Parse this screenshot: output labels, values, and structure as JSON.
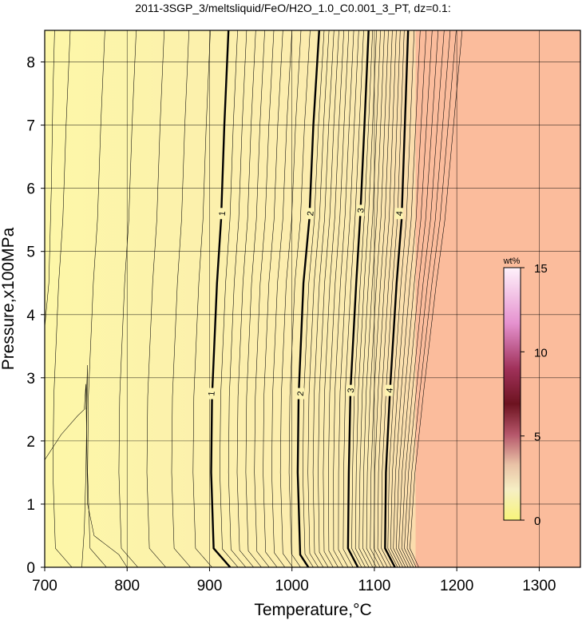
{
  "chart_data": {
    "type": "contour",
    "title": "2011-3SGP_3/meltsliquid/FeO/H2O_1.0_C0.001_3_PT, dz=0.1:",
    "xlabel": "Temperature,°C",
    "ylabel": "Pressure,x100MPa",
    "xlim": [
      700,
      1350
    ],
    "ylim": [
      0,
      8.5
    ],
    "x_ticks": [
      700,
      800,
      900,
      1000,
      1100,
      1200,
      1300
    ],
    "y_ticks": [
      0,
      1,
      2,
      3,
      4,
      5,
      6,
      7,
      8
    ],
    "grid": true,
    "contour_interval": 0.1,
    "labeled_contours": [
      {
        "level": 1,
        "points": [
          [
            925,
            0
          ],
          [
            905,
            0.3
          ],
          [
            902,
            1.5
          ],
          [
            903,
            2.7
          ],
          [
            909,
            4.5
          ],
          [
            914,
            5.5
          ],
          [
            918,
            7
          ],
          [
            923,
            8.5
          ]
        ]
      },
      {
        "level": 2,
        "points": [
          [
            1020,
            0
          ],
          [
            1010,
            0.2
          ],
          [
            1007,
            1.5
          ],
          [
            1008,
            2.7
          ],
          [
            1014,
            4.5
          ],
          [
            1021,
            5.5
          ],
          [
            1026,
            7
          ],
          [
            1033,
            8.5
          ]
        ]
      },
      {
        "level": 3,
        "points": [
          [
            1080,
            0
          ],
          [
            1068,
            0.3
          ],
          [
            1069,
            1.5
          ],
          [
            1071,
            2.8
          ],
          [
            1078,
            4.5
          ],
          [
            1083,
            5.6
          ],
          [
            1088,
            7
          ],
          [
            1093,
            8.5
          ]
        ]
      },
      {
        "level": 4,
        "points": [
          [
            1125,
            0
          ],
          [
            1113,
            0.3
          ],
          [
            1114,
            1.5
          ],
          [
            1119,
            2.8
          ],
          [
            1127,
            4.5
          ],
          [
            1133,
            5.5
          ],
          [
            1137,
            7
          ],
          [
            1141,
            8.5
          ]
        ]
      }
    ],
    "label_positions": [
      {
        "text": "1",
        "x": 902,
        "y": 2.75
      },
      {
        "text": "1",
        "x": 915,
        "y": 5.6
      },
      {
        "text": "2",
        "x": 1010,
        "y": 2.75
      },
      {
        "text": "2",
        "x": 1022,
        "y": 5.6
      },
      {
        "text": "3",
        "x": 1071,
        "y": 2.8
      },
      {
        "text": "3",
        "x": 1083,
        "y": 5.65
      },
      {
        "text": "4",
        "x": 1118,
        "y": 2.8
      },
      {
        "text": "4",
        "x": 1130,
        "y": 5.6
      }
    ],
    "fill_regions": [
      {
        "name": "low",
        "color": "#fdf5a4"
      },
      {
        "name": "high",
        "color": "#fbbc9c"
      }
    ],
    "high_region_start_x": 1150,
    "colorbar": {
      "label": "wt%",
      "ticks": [
        0,
        5,
        10,
        15
      ],
      "range": [
        0,
        15
      ],
      "colors": [
        "#f8f580",
        "#f3e2b0",
        "#e8b39c",
        "#c76f70",
        "#8a1a1a",
        "#b03a5a",
        "#e99ad5",
        "#fbe9f5"
      ]
    }
  }
}
